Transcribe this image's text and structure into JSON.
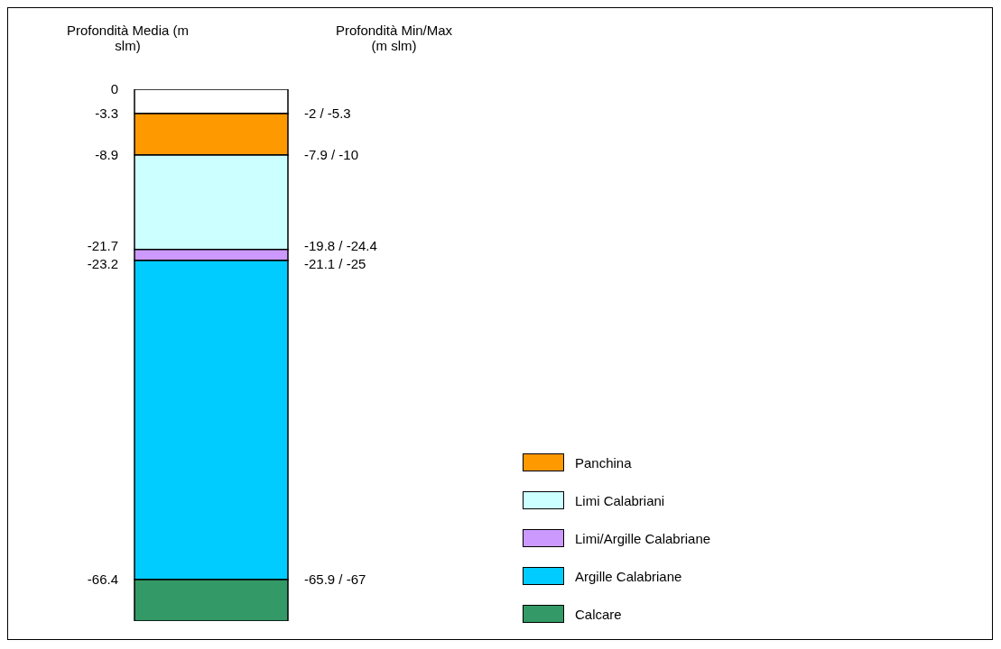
{
  "chart_data": {
    "type": "bar",
    "stacked": true,
    "categories": [
      null
    ],
    "ylabel": "Profondità Media (m slm)",
    "series": [
      {
        "color": "#ffffff",
        "values": [
          -3.3
        ]
      },
      {
        "name": "Panchina",
        "color": "#ff9900",
        "values": [
          -5.6
        ]
      },
      {
        "name": "Limi Calabriani",
        "color": "#ccffff",
        "values": [
          -12.8
        ]
      },
      {
        "name": "Limi/Argille Calabriane",
        "color": "#cc99ff",
        "values": [
          -1.5
        ]
      },
      {
        "name": "Argille Calabriane",
        "color": "#00ccff",
        "values": [
          -43.2
        ]
      },
      {
        "name": "Calcare",
        "color": "#339966",
        "values": [
          -5.6
        ]
      }
    ],
    "ylim": [
      -72,
      0
    ],
    "yticks": [
      0,
      -3.3,
      -8.9,
      -21.7,
      -23.2,
      -66.4
    ],
    "annotations": [
      "Profondità Min/Max (m slm)",
      "-2 / -5.3",
      "-7.9 / -10",
      "-19.8 / -24.4",
      "-21.1 / -25",
      "-65.9 / -67"
    ],
    "legend": "bottom right"
  }
}
